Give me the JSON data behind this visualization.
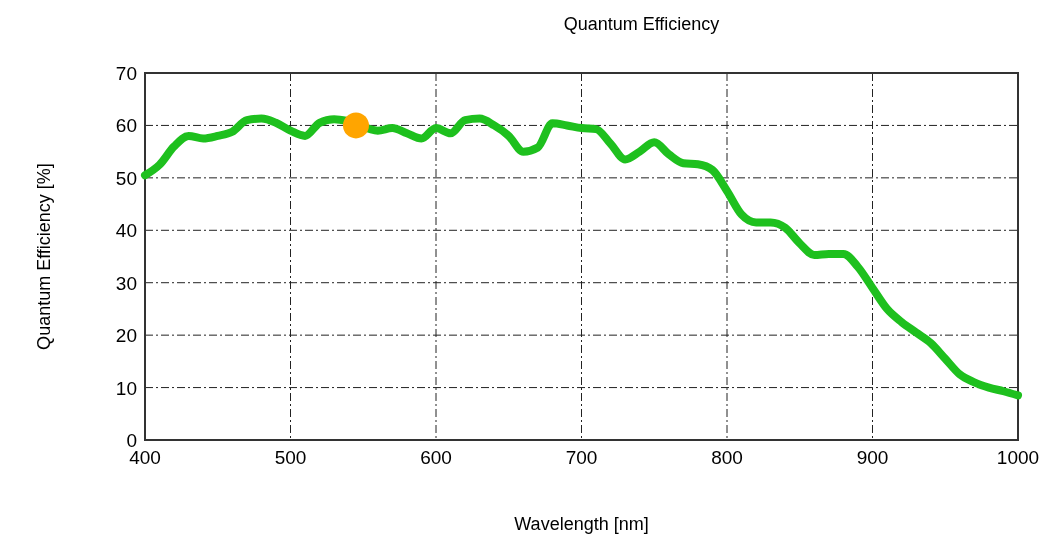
{
  "chart_data": {
    "type": "line",
    "title": "Quantum Efficiency",
    "xlabel": "Wavelength [nm]",
    "ylabel": "Quantum Efficiency [%]",
    "xlim": [
      400,
      1000
    ],
    "xticks": [
      400,
      500,
      600,
      700,
      800,
      900,
      1000
    ],
    "ylim": [
      0,
      70
    ],
    "yticks": [
      0,
      10,
      20,
      30,
      40,
      50,
      60,
      70
    ],
    "grid": true,
    "series": [
      {
        "color": "#1ec01e",
        "x": [
          400,
          410,
          420,
          430,
          440,
          450,
          460,
          470,
          480,
          490,
          500,
          510,
          520,
          530,
          540,
          560,
          570,
          580,
          590,
          600,
          610,
          620,
          630,
          640,
          650,
          660,
          670,
          680,
          690,
          700,
          710,
          720,
          730,
          740,
          750,
          760,
          770,
          780,
          790,
          800,
          810,
          820,
          830,
          840,
          850,
          860,
          870,
          880,
          890,
          900,
          910,
          920,
          930,
          940,
          950,
          960,
          970,
          980,
          990,
          1000
        ],
        "values": [
          50.5,
          52.5,
          56,
          58,
          57.5,
          58,
          58.8,
          61,
          61.3,
          60.5,
          59,
          58,
          60.5,
          61.2,
          60.8,
          59,
          59.5,
          58.5,
          57.5,
          59.5,
          58.5,
          61,
          61.3,
          60,
          58,
          55,
          55.8,
          60.4,
          60,
          59.5,
          59.3,
          56.5,
          53.5,
          55,
          56.8,
          54.5,
          52.8,
          52.6,
          51.5,
          47.5,
          43,
          41.5,
          41.5,
          40.5,
          37.5,
          35.3,
          35.5,
          35.5,
          33,
          29,
          25,
          22.5,
          20.5,
          18.5,
          15.5,
          12.5,
          11,
          10,
          9.3,
          8.5
        ]
      },
      {
        "type": "scatter",
        "color": "#ffa500",
        "marker": "circle",
        "x": [
          545
        ],
        "values": [
          60
        ]
      }
    ]
  }
}
